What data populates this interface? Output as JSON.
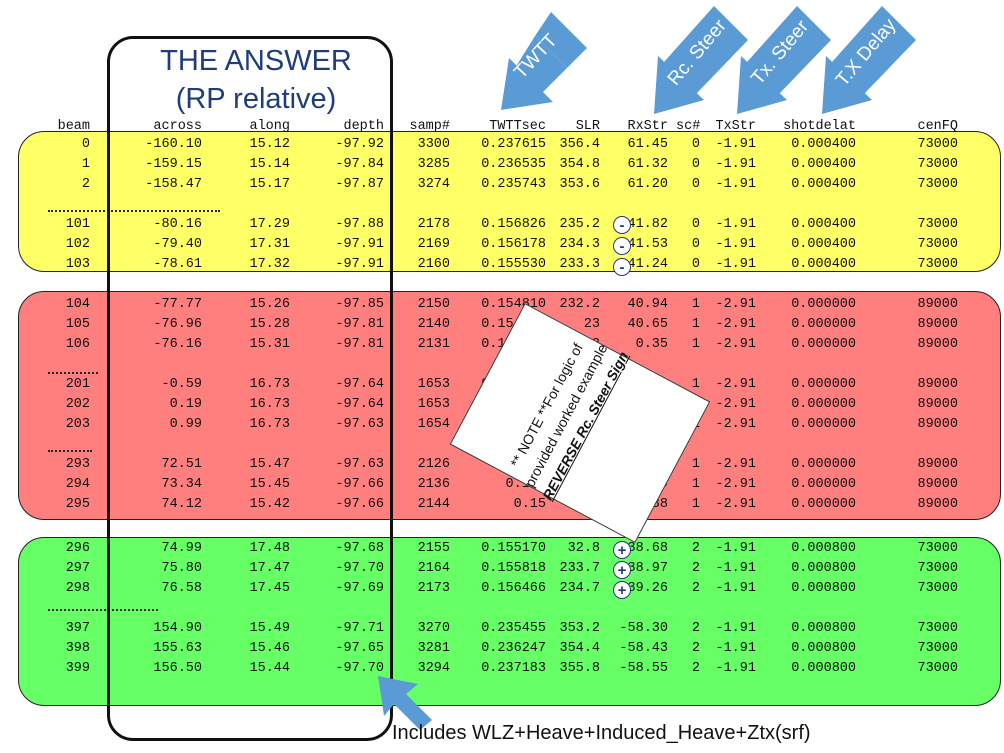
{
  "title_line1": "THE ANSWER",
  "title_line2": "(RP relative)",
  "arrows": {
    "twtt": "TWTT",
    "rc_steer": "Rc. Steer",
    "tx_steer": "Tx. Steer",
    "tx_delay": "T.X Delay"
  },
  "headers": [
    "beam",
    "across",
    "along",
    "depth",
    "samp#",
    "TWTTsec",
    "SLR",
    "RxStr",
    "sc#",
    "TxStr",
    "shotdelat",
    "cenFQ"
  ],
  "rows": [
    [
      "0",
      "-160.10",
      "15.12",
      "-97.92",
      "3300",
      "0.237615",
      "356.4",
      "61.45",
      "0",
      "-1.91",
      "0.000400",
      "73000"
    ],
    [
      "1",
      "-159.15",
      "15.14",
      "-97.84",
      "3285",
      "0.236535",
      "354.8",
      "61.32",
      "0",
      "-1.91",
      "0.000400",
      "73000"
    ],
    [
      "2",
      "-158.47",
      "15.17",
      "-97.87",
      "3274",
      "0.235743",
      "353.6",
      "61.20",
      "0",
      "-1.91",
      "0.000400",
      "73000"
    ],
    [
      "101",
      "-80.16",
      "17.29",
      "-97.88",
      "2178",
      "0.156826",
      "235.2",
      "41.82",
      "0",
      "-1.91",
      "0.000400",
      "73000"
    ],
    [
      "102",
      "-79.40",
      "17.31",
      "-97.91",
      "2169",
      "0.156178",
      "234.3",
      "41.53",
      "0",
      "-1.91",
      "0.000400",
      "73000"
    ],
    [
      "103",
      "-78.61",
      "17.32",
      "-97.91",
      "2160",
      "0.155530",
      "233.3",
      "41.24",
      "0",
      "-1.91",
      "0.000400",
      "73000"
    ],
    [
      "104",
      "-77.77",
      "15.26",
      "-97.85",
      "2150",
      "0.154810",
      "232.2",
      "40.94",
      "1",
      "-2.91",
      "0.000000",
      "89000"
    ],
    [
      "105",
      "-76.96",
      "15.28",
      "-97.81",
      "2140",
      "0.154090",
      "23",
      "40.65",
      "1",
      "-2.91",
      "0.000000",
      "89000"
    ],
    [
      "106",
      "-76.16",
      "15.31",
      "-97.81",
      "2131",
      "0.153442",
      "2",
      "0.35",
      "1",
      "-2.91",
      "0.000000",
      "89000"
    ],
    [
      "201",
      "-0.59",
      "16.73",
      "-97.64",
      "1653",
      "0.119024",
      "",
      "0.46",
      "1",
      "-2.91",
      "0.000000",
      "89000"
    ],
    [
      "202",
      "0.19",
      "16.73",
      "-97.64",
      "1653",
      "0.119024",
      "",
      "-0.03",
      "1",
      "-2.91",
      "0.000000",
      "89000"
    ],
    [
      "203",
      "0.99",
      "16.73",
      "-97.63",
      "1654",
      "0.11909",
      "",
      "-0.53",
      "1",
      "-2.91",
      "0.000000",
      "89000"
    ],
    [
      "293",
      "72.51",
      "15.47",
      "-97.63",
      "2126",
      "0.1530",
      "6",
      "-37.79",
      "1",
      "-2.91",
      "0.000000",
      "89000"
    ],
    [
      "294",
      "73.34",
      "15.45",
      "-97.66",
      "2136",
      "0.153",
      "17",
      "-38.09",
      "1",
      "-2.91",
      "0.000000",
      "89000"
    ],
    [
      "295",
      "74.12",
      "15.42",
      "-97.66",
      "2144",
      "0.15",
      "6",
      "-38.38",
      "1",
      "-2.91",
      "0.000000",
      "89000"
    ],
    [
      "296",
      "74.99",
      "17.48",
      "-97.68",
      "2155",
      "0.155170",
      "32.8",
      "38.68",
      "2",
      "-1.91",
      "0.000800",
      "73000"
    ],
    [
      "297",
      "75.80",
      "17.47",
      "-97.70",
      "2164",
      "0.155818",
      "233.7",
      "38.97",
      "2",
      "-1.91",
      "0.000800",
      "73000"
    ],
    [
      "298",
      "76.58",
      "17.45",
      "-97.69",
      "2173",
      "0.156466",
      "234.7",
      "39.26",
      "2",
      "-1.91",
      "0.000800",
      "73000"
    ],
    [
      "397",
      "154.90",
      "15.49",
      "-97.71",
      "3270",
      "0.235455",
      "353.2",
      "-58.30",
      "2",
      "-1.91",
      "0.000800",
      "73000"
    ],
    [
      "398",
      "155.63",
      "15.46",
      "-97.65",
      "3281",
      "0.236247",
      "354.4",
      "-58.43",
      "2",
      "-1.91",
      "0.000800",
      "73000"
    ],
    [
      "399",
      "156.50",
      "15.44",
      "-97.70",
      "3294",
      "0.237183",
      "355.8",
      "-58.55",
      "2",
      "-1.91",
      "0.000800",
      "73000"
    ]
  ],
  "signs": {
    "minus": "-",
    "plus": "+"
  },
  "note": {
    "line1": "** NOTE **For logic of",
    "line2": "provided worked example",
    "line3": "REVERSE Rc. Steer Sign"
  },
  "footer": "Includes WLZ+Heave+Induced_Heave+Ztx(srf)",
  "colors": {
    "yellow_band": "#ffff66",
    "red_band": "#ff7f7f",
    "green_band": "#66ff66",
    "arrow": "#5b9bd5",
    "title": "#1f3d7a"
  }
}
